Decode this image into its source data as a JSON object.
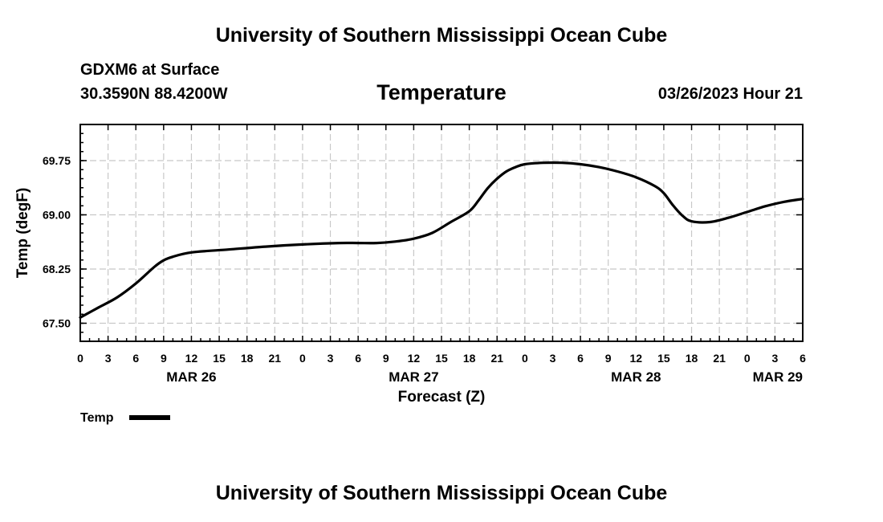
{
  "header": {
    "title": "University of Southern Mississippi Ocean Cube",
    "station": "GDXM6 at Surface",
    "coordinates": "30.3590N  88.4200W",
    "variable": "Temperature",
    "datetime": "03/26/2023 Hour 21"
  },
  "footer": {
    "title": "University of Southern Mississippi Ocean Cube"
  },
  "chart_data": {
    "type": "line",
    "title": "Temperature",
    "xlabel": "Forecast (Z)",
    "ylabel": "Temp (degF)",
    "xlim": [
      0,
      78
    ],
    "ylim": [
      67.25,
      70.25
    ],
    "y_ticks": [
      67.5,
      68.25,
      69.0,
      69.75
    ],
    "y_tick_labels": [
      "67.50",
      "68.25",
      "69.00",
      "69.75"
    ],
    "x_ticks": [
      0,
      3,
      6,
      9,
      12,
      15,
      18,
      21,
      24,
      27,
      30,
      33,
      36,
      39,
      42,
      45,
      48,
      51,
      54,
      57,
      60,
      63,
      66,
      69,
      72,
      75,
      78
    ],
    "x_tick_labels": [
      "0",
      "3",
      "6",
      "9",
      "12",
      "15",
      "18",
      "21",
      "0",
      "3",
      "6",
      "9",
      "12",
      "15",
      "18",
      "21",
      "0",
      "3",
      "6",
      "9",
      "12",
      "15",
      "18",
      "21",
      "0",
      "3",
      "6"
    ],
    "date_labels": [
      {
        "x": 12,
        "label": "MAR 26"
      },
      {
        "x": 36,
        "label": "MAR 27"
      },
      {
        "x": 60,
        "label": "MAR 28"
      },
      {
        "x": 78,
        "label": "MAR 29"
      }
    ],
    "grid": true,
    "legend_position": "bottom-left",
    "series": [
      {
        "name": "Temp",
        "color": "#000000",
        "x": [
          0,
          2,
          4,
          6,
          8,
          9,
          10,
          12,
          16,
          20,
          24,
          28,
          30,
          32,
          34,
          36,
          38,
          40,
          42,
          43,
          44,
          45,
          46,
          47,
          48,
          50,
          52,
          54,
          56,
          58,
          60,
          62,
          63,
          64,
          65,
          66,
          68,
          70,
          72,
          74,
          76,
          78
        ],
        "values": [
          67.58,
          67.72,
          67.86,
          68.05,
          68.28,
          68.37,
          68.42,
          68.48,
          68.52,
          68.56,
          68.59,
          68.61,
          68.61,
          68.61,
          68.63,
          68.67,
          68.75,
          68.9,
          69.05,
          69.2,
          69.37,
          69.5,
          69.6,
          69.66,
          69.7,
          69.72,
          69.72,
          69.7,
          69.66,
          69.6,
          69.52,
          69.4,
          69.3,
          69.13,
          68.99,
          68.91,
          68.9,
          68.96,
          69.04,
          69.12,
          69.18,
          69.22
        ]
      }
    ]
  }
}
